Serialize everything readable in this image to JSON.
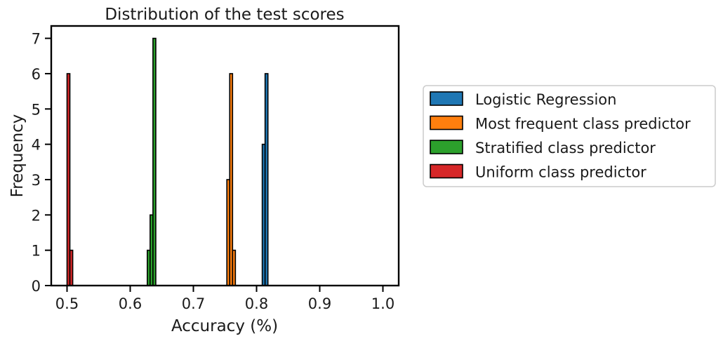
{
  "chart_data": {
    "type": "bar",
    "title": "Distribution of the test scores",
    "xlabel": "Accuracy (%)",
    "ylabel": "Frequency",
    "xlim": [
      0.475,
      1.025
    ],
    "ylim": [
      0,
      7.35
    ],
    "xticks": [
      "0.5",
      "0.6",
      "0.7",
      "0.8",
      "0.9",
      "1.0"
    ],
    "yticks": [
      "0",
      "1",
      "2",
      "3",
      "4",
      "5",
      "6",
      "7"
    ],
    "grid": false,
    "legend_position": "outside-right",
    "series": [
      {
        "name": "Logistic Regression",
        "color": "#1f77b4",
        "bins": [
          {
            "x0": 0.809,
            "x1": 0.8135,
            "count": 4
          },
          {
            "x0": 0.8135,
            "x1": 0.818,
            "count": 6
          }
        ]
      },
      {
        "name": "Most frequent class predictor",
        "color": "#ff7f0e",
        "bins": [
          {
            "x0": 0.753,
            "x1": 0.7575,
            "count": 3
          },
          {
            "x0": 0.7575,
            "x1": 0.762,
            "count": 6
          },
          {
            "x0": 0.762,
            "x1": 0.7665,
            "count": 1
          }
        ]
      },
      {
        "name": "Stratified class predictor",
        "color": "#2ca02c",
        "bins": [
          {
            "x0": 0.627,
            "x1": 0.6315,
            "count": 1
          },
          {
            "x0": 0.6315,
            "x1": 0.636,
            "count": 2
          },
          {
            "x0": 0.636,
            "x1": 0.6405,
            "count": 7
          }
        ]
      },
      {
        "name": "Uniform class predictor",
        "color": "#d62728",
        "bins": [
          {
            "x0": 0.5,
            "x1": 0.5045,
            "count": 6
          },
          {
            "x0": 0.5045,
            "x1": 0.509,
            "count": 1
          }
        ]
      }
    ]
  }
}
